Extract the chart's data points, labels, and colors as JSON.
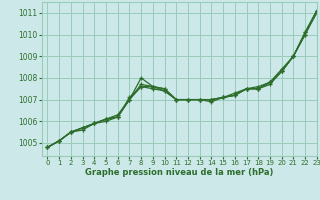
{
  "background_color": "#cce8e8",
  "grid_color": "#99ccbb",
  "line_color": "#2d6e2d",
  "xlabel": "Graphe pression niveau de la mer (hPa)",
  "xlim": [
    -0.5,
    23
  ],
  "ylim": [
    1004.4,
    1011.5
  ],
  "yticks": [
    1005,
    1006,
    1007,
    1008,
    1009,
    1010,
    1011
  ],
  "xticks": [
    0,
    1,
    2,
    3,
    4,
    5,
    6,
    7,
    8,
    9,
    10,
    11,
    12,
    13,
    14,
    15,
    16,
    17,
    18,
    19,
    20,
    21,
    22,
    23
  ],
  "lines": [
    {
      "x": [
        0,
        1,
        2,
        3,
        4,
        5,
        6,
        7,
        8,
        9,
        10,
        11,
        12,
        13,
        14,
        15,
        16,
        17,
        18,
        19,
        20,
        21,
        22,
        23
      ],
      "y": [
        1004.8,
        1005.1,
        1005.5,
        1005.7,
        1005.9,
        1006.1,
        1006.2,
        1007.0,
        1008.0,
        1007.6,
        1007.5,
        1007.0,
        1007.0,
        1007.0,
        1007.0,
        1007.1,
        1007.2,
        1007.5,
        1007.5,
        1007.8,
        1008.3,
        1009.0,
        1010.0,
        1011.1
      ]
    },
    {
      "x": [
        0,
        1,
        2,
        3,
        4,
        5,
        6,
        7,
        8,
        9,
        10,
        11,
        12,
        13,
        14,
        15,
        16,
        17,
        18,
        19,
        20,
        21,
        22,
        23
      ],
      "y": [
        1004.8,
        1005.1,
        1005.5,
        1005.7,
        1005.9,
        1006.1,
        1006.2,
        1007.1,
        1007.6,
        1007.6,
        1007.4,
        1007.0,
        1007.0,
        1007.0,
        1006.9,
        1007.1,
        1007.2,
        1007.5,
        1007.5,
        1007.8,
        1008.3,
        1009.0,
        1010.0,
        1011.0
      ]
    },
    {
      "x": [
        0,
        1,
        2,
        3,
        4,
        5,
        6,
        7,
        8,
        9,
        10,
        11,
        12,
        13,
        14,
        15,
        16,
        17,
        18,
        19,
        20,
        21,
        22,
        23
      ],
      "y": [
        1004.8,
        1005.1,
        1005.5,
        1005.6,
        1005.9,
        1006.0,
        1006.2,
        1007.0,
        1007.6,
        1007.5,
        1007.4,
        1007.0,
        1007.0,
        1007.0,
        1007.0,
        1007.1,
        1007.2,
        1007.5,
        1007.5,
        1007.7,
        1008.3,
        1009.0,
        1010.1,
        1011.1
      ]
    },
    {
      "x": [
        0,
        1,
        2,
        3,
        4,
        5,
        6,
        7,
        8,
        9,
        10,
        11,
        12,
        13,
        14,
        15,
        16,
        17,
        18,
        19,
        20,
        21,
        22,
        23
      ],
      "y": [
        1004.8,
        1005.1,
        1005.5,
        1005.7,
        1005.9,
        1006.1,
        1006.3,
        1007.0,
        1007.7,
        1007.6,
        1007.5,
        1007.0,
        1007.0,
        1007.0,
        1007.0,
        1007.1,
        1007.3,
        1007.5,
        1007.6,
        1007.8,
        1008.4,
        1009.0,
        1010.1,
        1011.1
      ]
    }
  ]
}
